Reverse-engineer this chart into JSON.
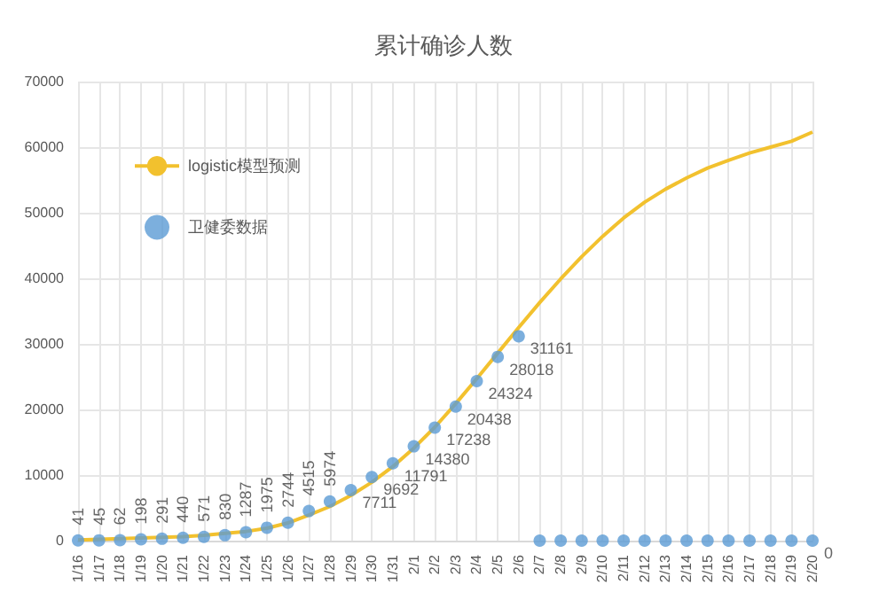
{
  "chart_data": {
    "type": "line",
    "title": "累计确诊人数",
    "categories": [
      "1/16",
      "1/17",
      "1/18",
      "1/19",
      "1/20",
      "1/21",
      "1/22",
      "1/23",
      "1/24",
      "1/25",
      "1/26",
      "1/27",
      "1/28",
      "1/29",
      "1/30",
      "1/31",
      "2/1",
      "2/2",
      "2/3",
      "2/4",
      "2/5",
      "2/6",
      "2/7",
      "2/8",
      "2/9",
      "2/10",
      "2/11",
      "2/12",
      "2/13",
      "2/14",
      "2/15",
      "2/16",
      "2/17",
      "2/18",
      "2/19",
      "2/20"
    ],
    "series": [
      {
        "name": "logistic模型预测",
        "color": "#f2c12e",
        "marker": "none",
        "values": [
          100,
          200,
          300,
          400,
          500,
          600,
          800,
          1100,
          1400,
          1900,
          2700,
          3900,
          5200,
          6900,
          8900,
          11300,
          14100,
          17300,
          20900,
          24700,
          28600,
          32500,
          36300,
          39900,
          43300,
          46400,
          49200,
          51600,
          53600,
          55300,
          56800,
          58000,
          59100,
          60000,
          60900,
          62300
        ]
      },
      {
        "name": "卫健委数据",
        "type": "scatter",
        "color": "#5b9bd5",
        "marker": "circle",
        "values": [
          41,
          45,
          62,
          198,
          291,
          440,
          571,
          830,
          1287,
          1975,
          2744,
          4515,
          5974,
          7711,
          9692,
          11791,
          14380,
          17238,
          20438,
          24324,
          28018,
          31161,
          0,
          0,
          0,
          0,
          0,
          0,
          0,
          0,
          0,
          0,
          0,
          0,
          0,
          0
        ],
        "value_labels": [
          "41",
          "45",
          "62",
          "198",
          "291",
          "440",
          "571",
          "830",
          "1287",
          "1975",
          "2744",
          "4515",
          "5974",
          "7711",
          "9692",
          "11791",
          "14380",
          "17238",
          "20438",
          "24324",
          "28018",
          "31161",
          null,
          null,
          null,
          null,
          null,
          null,
          null,
          null,
          null,
          null,
          null,
          null,
          null,
          "0"
        ]
      }
    ],
    "ylim": [
      0,
      70000
    ],
    "yticks": [
      0,
      10000,
      20000,
      30000,
      40000,
      50000,
      60000,
      70000
    ],
    "grid": true,
    "legend": "top left"
  }
}
